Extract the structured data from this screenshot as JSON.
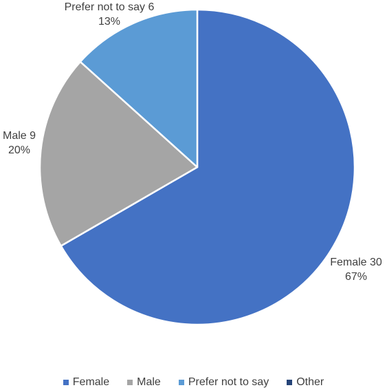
{
  "chart_data": {
    "type": "pie",
    "title": "",
    "start_angle_deg": 0,
    "direction": "clockwise",
    "legend_position": "bottom",
    "categories": [
      "Female",
      "Male",
      "Prefer not to say",
      "Other"
    ],
    "values": [
      30,
      9,
      6,
      0
    ],
    "percent_labels": [
      "67%",
      "20%",
      "13%",
      "0%"
    ],
    "data_labels": [
      {
        "category": "Female",
        "value": "30",
        "percent": "67%"
      },
      {
        "category": "Male",
        "value": "9",
        "percent": "20%"
      },
      {
        "category": "Prefer not to say",
        "value": "6",
        "percent": "13%"
      }
    ],
    "colors": [
      "#4472C4",
      "#A5A5A5",
      "#5B9BD5",
      "#264478"
    ]
  },
  "legend": {
    "items": [
      {
        "label": "Female",
        "color": "#4472C4"
      },
      {
        "label": "Male",
        "color": "#A5A5A5"
      },
      {
        "label": "Prefer not to say",
        "color": "#5B9BD5"
      },
      {
        "label": "Other",
        "color": "#264478"
      }
    ]
  }
}
